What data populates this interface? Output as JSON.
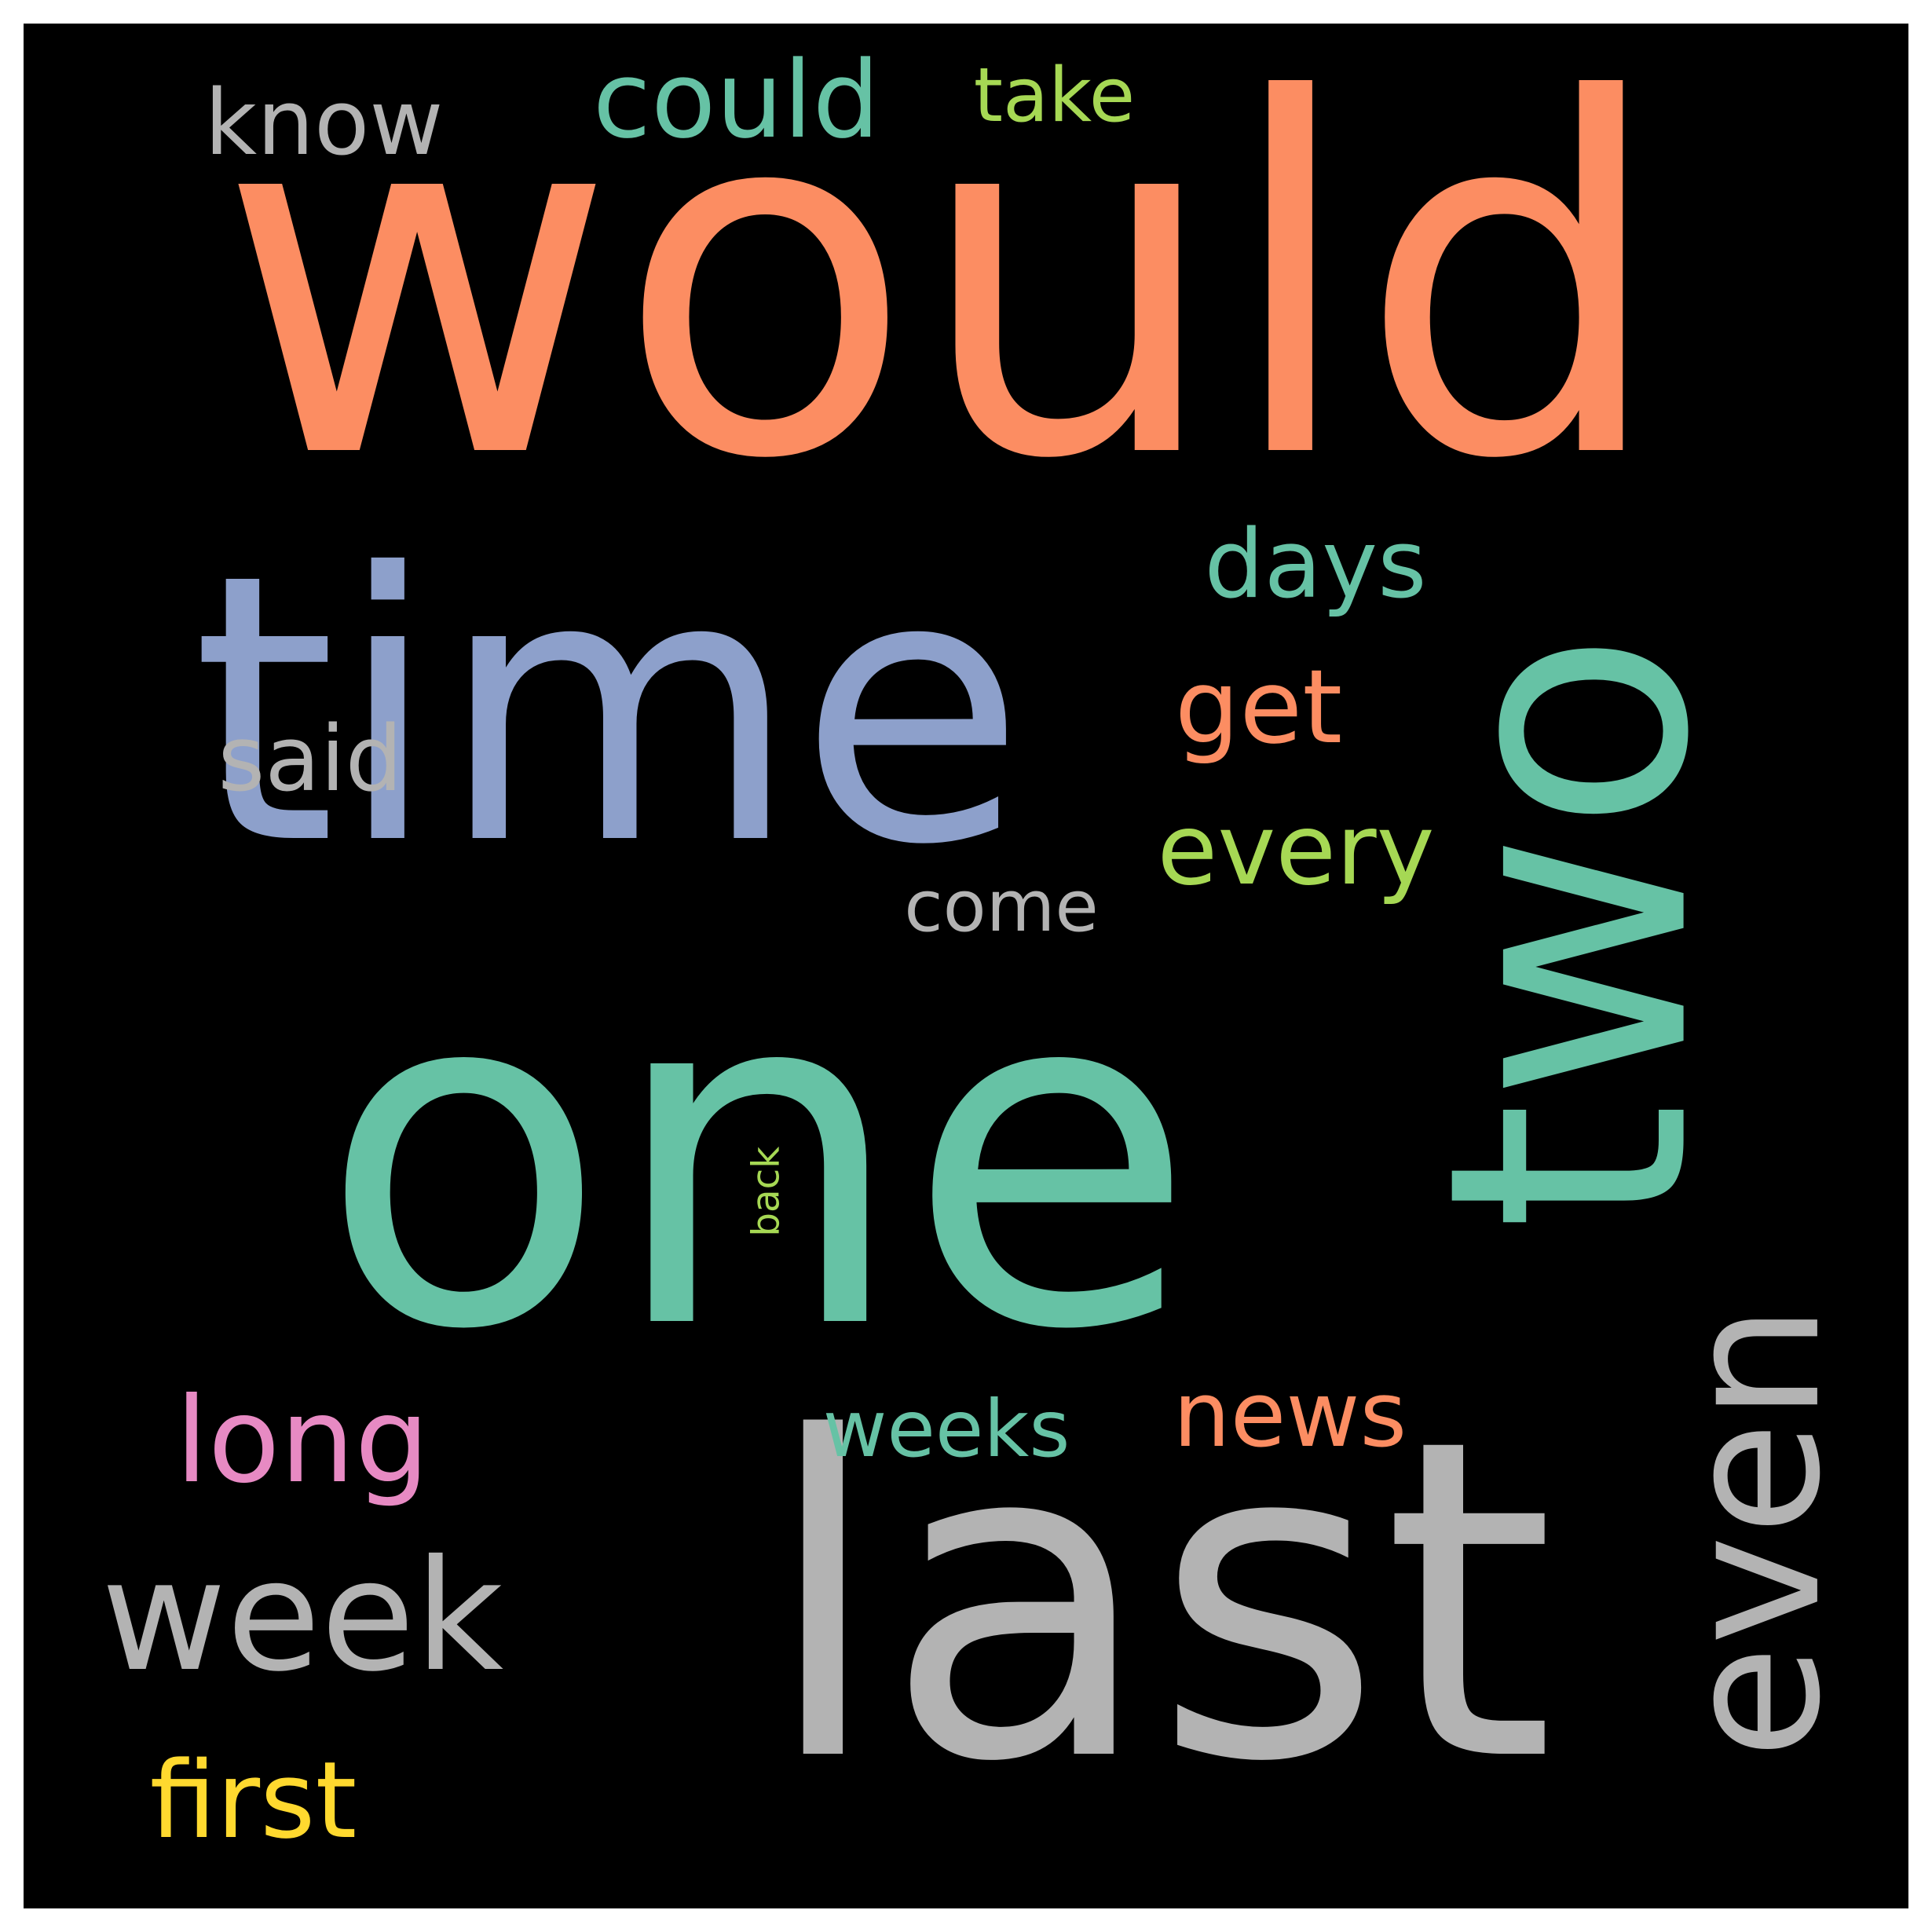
{
  "word_cloud": {
    "background": "#000000",
    "words": [
      {
        "text": "would",
        "color": "#fc8d62",
        "orientation": "horizontal"
      },
      {
        "text": "one",
        "color": "#66c2a5",
        "orientation": "horizontal"
      },
      {
        "text": "last",
        "color": "#b3b3b3",
        "orientation": "horizontal"
      },
      {
        "text": "time",
        "color": "#8da0cb",
        "orientation": "horizontal"
      },
      {
        "text": "two",
        "color": "#66c2a5",
        "orientation": "vertical"
      },
      {
        "text": "even",
        "color": "#b3b3b3",
        "orientation": "vertical"
      },
      {
        "text": "week",
        "color": "#b3b3b3",
        "orientation": "horizontal"
      },
      {
        "text": "could",
        "color": "#66c2a5",
        "orientation": "horizontal"
      },
      {
        "text": "first",
        "color": "#ffd92f",
        "orientation": "horizontal"
      },
      {
        "text": "every",
        "color": "#a6d854",
        "orientation": "horizontal"
      },
      {
        "text": "days",
        "color": "#66c2a5",
        "orientation": "horizontal"
      },
      {
        "text": "get",
        "color": "#fc8d62",
        "orientation": "horizontal"
      },
      {
        "text": "said",
        "color": "#b3b3b3",
        "orientation": "horizontal"
      },
      {
        "text": "long",
        "color": "#e78ac3",
        "orientation": "horizontal"
      },
      {
        "text": "weeks",
        "color": "#66c2a5",
        "orientation": "horizontal"
      },
      {
        "text": "news",
        "color": "#fc8d62",
        "orientation": "horizontal"
      },
      {
        "text": "back",
        "color": "#a6d854",
        "orientation": "vertical"
      },
      {
        "text": "know",
        "color": "#b3b3b3",
        "orientation": "horizontal"
      },
      {
        "text": "take",
        "color": "#a6d854",
        "orientation": "horizontal"
      },
      {
        "text": "come",
        "color": "#b3b3b3",
        "orientation": "horizontal"
      }
    ]
  }
}
